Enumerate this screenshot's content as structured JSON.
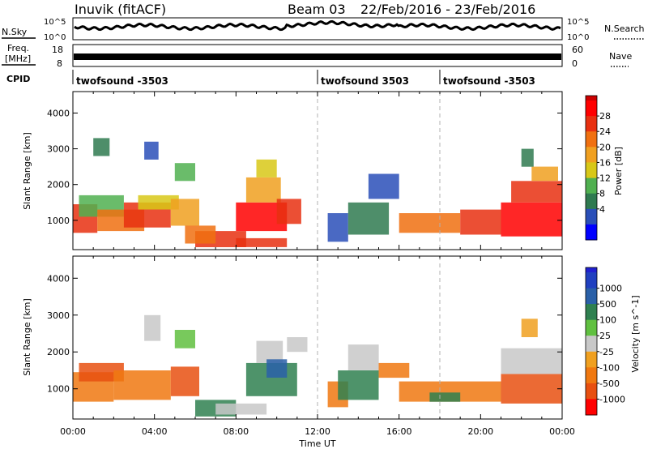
{
  "header": {
    "radar": "Inuvik (fitACF)",
    "beam": "Beam 03",
    "date_range": "22/Feb/2016 - 23/Feb/2016"
  },
  "top_panels": {
    "nsky_label": "N.Sky",
    "nsearch_label": "N.Search",
    "nsky_tick_top": "10^5",
    "nsky_tick_bottom": "10^0",
    "freq_label_1": "Freq.",
    "freq_label_2": "[MHz]",
    "freq_ticks": [
      "18",
      "8"
    ],
    "nave_label": "Nave",
    "nave_ticks": [
      "60",
      "0"
    ],
    "cpid_label": "CPID",
    "cpid_segments": [
      {
        "label": "twofsound -3503",
        "start_hour": 0
      },
      {
        "label": "twofsound 3503",
        "start_hour": 12
      },
      {
        "label": "twofsound -3503",
        "start_hour": 18
      }
    ]
  },
  "chart_data": [
    {
      "type": "heatmap",
      "name": "power",
      "ylabel": "Slant Range [km]",
      "ylim": [
        180,
        4600
      ],
      "yticks": [
        1000,
        2000,
        3000,
        4000
      ],
      "xlim_hours": [
        0,
        24
      ],
      "colorbar_label": "Power [dB]",
      "colorbar_ticks": [
        "28",
        "24",
        "20",
        "16",
        "12",
        "8",
        "4"
      ],
      "colorbar_colors": [
        "#0000ff",
        "#2a4fb8",
        "#2f7a50",
        "#50b050",
        "#d8c818",
        "#f0a020",
        "#f07010",
        "#e83010",
        "#ff0000"
      ],
      "colorbar_max_color": "#cc0000",
      "dominant_band_km": [
        700,
        1600
      ],
      "time_marker_hours": [
        12,
        18
      ],
      "cells": [
        {
          "t0": 0.0,
          "t1": 1.2,
          "r0": 650,
          "r1": 1450,
          "color": "#e83010"
        },
        {
          "t0": 0.3,
          "t1": 2.5,
          "r0": 1100,
          "r1": 1700,
          "color": "#50b050"
        },
        {
          "t0": 1.2,
          "t1": 3.5,
          "r0": 700,
          "r1": 1300,
          "color": "#f07010"
        },
        {
          "t0": 2.5,
          "t1": 4.8,
          "r0": 800,
          "r1": 1500,
          "color": "#e83010"
        },
        {
          "t0": 3.2,
          "t1": 5.2,
          "r0": 1300,
          "r1": 1700,
          "color": "#d8c818"
        },
        {
          "t0": 4.8,
          "t1": 6.2,
          "r0": 850,
          "r1": 1600,
          "color": "#f0a020"
        },
        {
          "t0": 3.5,
          "t1": 4.2,
          "r0": 2700,
          "r1": 3200,
          "color": "#2a4fb8"
        },
        {
          "t0": 1.0,
          "t1": 1.8,
          "r0": 2800,
          "r1": 3300,
          "color": "#2f7a50"
        },
        {
          "t0": 5.0,
          "t1": 6.0,
          "r0": 2100,
          "r1": 2600,
          "color": "#50b050"
        },
        {
          "t0": 6.0,
          "t1": 8.5,
          "r0": 250,
          "r1": 700,
          "color": "#e83010"
        },
        {
          "t0": 5.5,
          "t1": 7.0,
          "r0": 350,
          "r1": 850,
          "color": "#f07010"
        },
        {
          "t0": 8.0,
          "t1": 10.5,
          "r0": 700,
          "r1": 1500,
          "color": "#ff0000"
        },
        {
          "t0": 8.5,
          "t1": 10.2,
          "r0": 1500,
          "r1": 2200,
          "color": "#f0a020"
        },
        {
          "t0": 9.0,
          "t1": 10.0,
          "r0": 2200,
          "r1": 2700,
          "color": "#d8c818"
        },
        {
          "t0": 10.0,
          "t1": 11.2,
          "r0": 900,
          "r1": 1600,
          "color": "#e83010"
        },
        {
          "t0": 8.0,
          "t1": 10.5,
          "r0": 250,
          "r1": 500,
          "color": "#e83010"
        },
        {
          "t0": 12.5,
          "t1": 13.5,
          "r0": 400,
          "r1": 1200,
          "color": "#2a4fb8"
        },
        {
          "t0": 13.5,
          "t1": 15.5,
          "r0": 600,
          "r1": 1500,
          "color": "#2f7a50"
        },
        {
          "t0": 14.5,
          "t1": 16.0,
          "r0": 1600,
          "r1": 2300,
          "color": "#2a4fb8"
        },
        {
          "t0": 16.0,
          "t1": 19.0,
          "r0": 650,
          "r1": 1200,
          "color": "#f07010"
        },
        {
          "t0": 19.0,
          "t1": 21.0,
          "r0": 600,
          "r1": 1300,
          "color": "#e83010"
        },
        {
          "t0": 21.0,
          "t1": 24.0,
          "r0": 550,
          "r1": 1500,
          "color": "#ff0000"
        },
        {
          "t0": 21.5,
          "t1": 24.0,
          "r0": 1500,
          "r1": 2100,
          "color": "#e83010"
        },
        {
          "t0": 22.5,
          "t1": 23.8,
          "r0": 2100,
          "r1": 2500,
          "color": "#f0a020"
        },
        {
          "t0": 22.0,
          "t1": 22.6,
          "r0": 2500,
          "r1": 3000,
          "color": "#2f7a50"
        }
      ]
    },
    {
      "type": "heatmap",
      "name": "velocity",
      "ylabel": "Slant Range [km]",
      "ylim": [
        180,
        4600
      ],
      "yticks": [
        1000,
        2000,
        3000,
        4000
      ],
      "xlim_hours": [
        0,
        24
      ],
      "xticks": [
        "00:00",
        "04:00",
        "08:00",
        "12:00",
        "16:00",
        "20:00",
        "00:00"
      ],
      "xlabel": "Time UT",
      "colorbar_label": "Velocity [m s^-1]",
      "colorbar_ticks": [
        "1000",
        "500",
        "100",
        "25",
        "-25",
        "-100",
        "-500",
        "-1000"
      ],
      "colorbar_colors": [
        "#ff0000",
        "#e85010",
        "#f07810",
        "#f0a020",
        "#c8c8c8",
        "#60c040",
        "#2f8050",
        "#2a60a8",
        "#2040c0"
      ],
      "colorbar_max_color": "#2020d0",
      "dominant_band_km": [
        700,
        1600
      ],
      "time_marker_hours": [
        12,
        18
      ],
      "cells": [
        {
          "t0": 0.0,
          "t1": 2.0,
          "r0": 650,
          "r1": 1450,
          "color": "#f07810"
        },
        {
          "t0": 0.3,
          "t1": 2.5,
          "r0": 1200,
          "r1": 1700,
          "color": "#e85010"
        },
        {
          "t0": 2.0,
          "t1": 4.8,
          "r0": 700,
          "r1": 1500,
          "color": "#f07810"
        },
        {
          "t0": 4.8,
          "t1": 6.2,
          "r0": 800,
          "r1": 1600,
          "color": "#e85010"
        },
        {
          "t0": 3.5,
          "t1": 4.3,
          "r0": 2300,
          "r1": 3000,
          "color": "#c8c8c8"
        },
        {
          "t0": 5.0,
          "t1": 6.0,
          "r0": 2100,
          "r1": 2600,
          "color": "#60c040"
        },
        {
          "t0": 6.0,
          "t1": 8.0,
          "r0": 250,
          "r1": 700,
          "color": "#2f8050"
        },
        {
          "t0": 7.0,
          "t1": 9.5,
          "r0": 300,
          "r1": 600,
          "color": "#c8c8c8"
        },
        {
          "t0": 8.5,
          "t1": 11.0,
          "r0": 800,
          "r1": 1700,
          "color": "#2f8050"
        },
        {
          "t0": 9.0,
          "t1": 10.3,
          "r0": 1700,
          "r1": 2300,
          "color": "#c8c8c8"
        },
        {
          "t0": 9.5,
          "t1": 10.5,
          "r0": 1300,
          "r1": 1800,
          "color": "#2a60a8"
        },
        {
          "t0": 10.5,
          "t1": 11.5,
          "r0": 2000,
          "r1": 2400,
          "color": "#c8c8c8"
        },
        {
          "t0": 12.5,
          "t1": 13.5,
          "r0": 500,
          "r1": 1200,
          "color": "#f07810"
        },
        {
          "t0": 13.0,
          "t1": 15.0,
          "r0": 700,
          "r1": 1500,
          "color": "#2f8050"
        },
        {
          "t0": 13.5,
          "t1": 15.0,
          "r0": 1500,
          "r1": 2200,
          "color": "#c8c8c8"
        },
        {
          "t0": 15.0,
          "t1": 16.5,
          "r0": 1300,
          "r1": 1700,
          "color": "#f07810"
        },
        {
          "t0": 16.0,
          "t1": 21.0,
          "r0": 650,
          "r1": 1200,
          "color": "#f07810"
        },
        {
          "t0": 17.5,
          "t1": 19.0,
          "r0": 650,
          "r1": 900,
          "color": "#2f8050"
        },
        {
          "t0": 21.0,
          "t1": 24.0,
          "r0": 600,
          "r1": 1400,
          "color": "#e85010"
        },
        {
          "t0": 21.0,
          "t1": 24.0,
          "r0": 1400,
          "r1": 2100,
          "color": "#c8c8c8"
        },
        {
          "t0": 22.0,
          "t1": 22.8,
          "r0": 2400,
          "r1": 2900,
          "color": "#f0a020"
        }
      ]
    }
  ]
}
